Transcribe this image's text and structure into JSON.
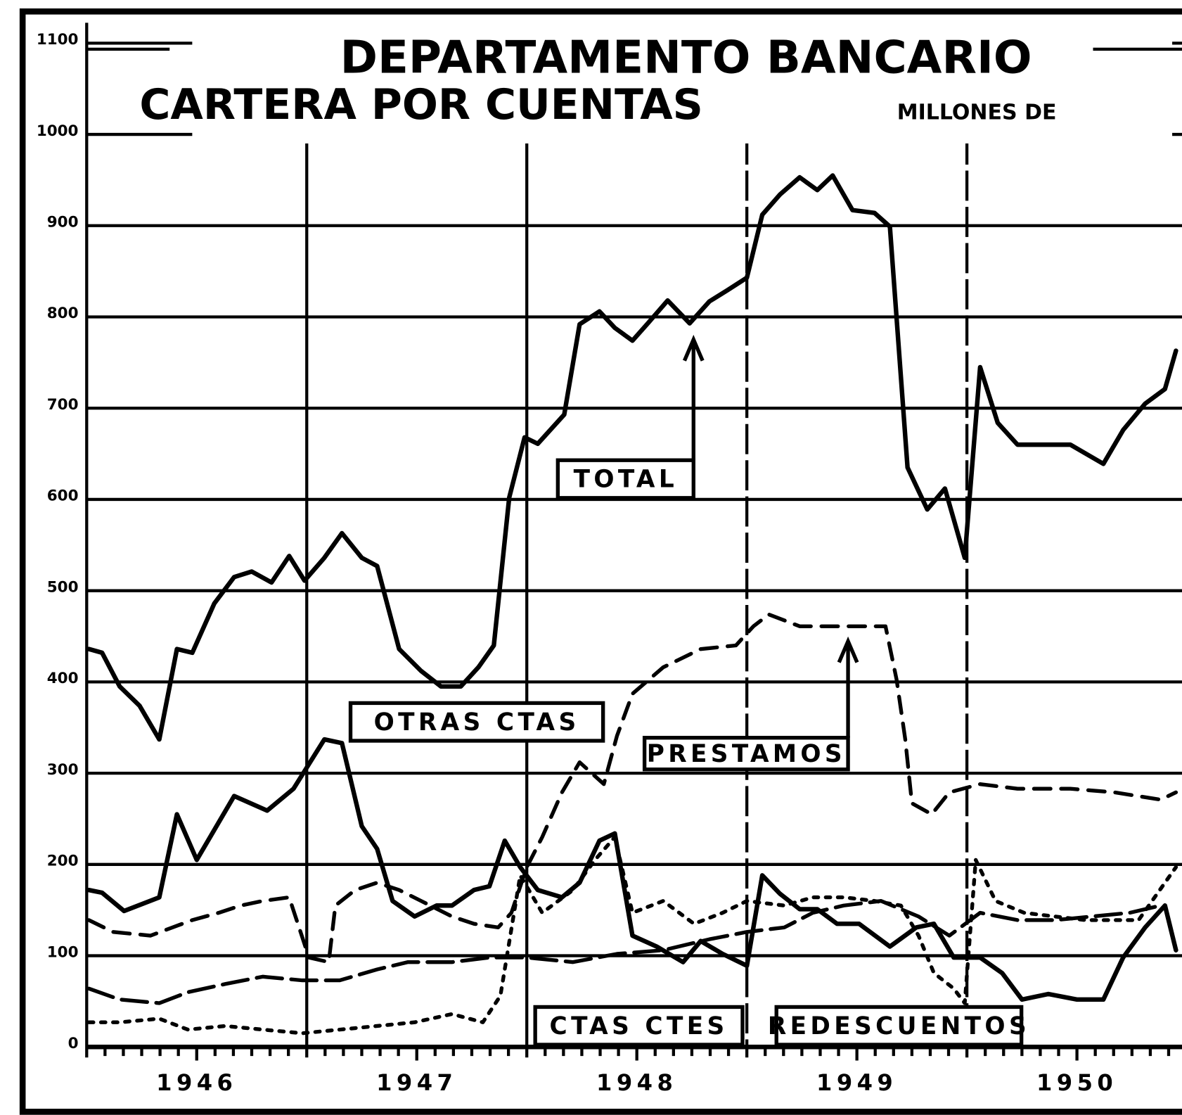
{
  "chart_data": {
    "type": "line",
    "title": "DEPARTAMENTO BANCARIO",
    "subtitle": "CARTERA POR CUENTAS",
    "y_label": "MILLONES DE",
    "ylim": [
      0,
      1100
    ],
    "yticks": [
      0,
      100,
      200,
      300,
      400,
      500,
      600,
      700,
      800,
      900,
      1000,
      1100
    ],
    "xlim": [
      1946,
      1950.95
    ],
    "xticks": [
      1946,
      1947,
      1948,
      1949,
      1950
    ],
    "grid": true,
    "series": [
      {
        "name": "TOTAL",
        "color": "#000000",
        "line_style": "solid",
        "x": [
          1946.01,
          1946.07,
          1946.15,
          1946.24,
          1946.33,
          1946.41,
          1946.48,
          1946.58,
          1946.67,
          1946.75,
          1946.84,
          1946.92,
          1946.99,
          1947.08,
          1947.16,
          1947.25,
          1947.32,
          1947.42,
          1947.52,
          1947.61,
          1947.7,
          1947.78,
          1947.85,
          1947.92,
          1947.99,
          1948.05,
          1948.17,
          1948.24,
          1948.33,
          1948.4,
          1948.48,
          1948.55,
          1948.64,
          1948.74,
          1948.83,
          1948.91,
          1949.0,
          1949.07,
          1949.15,
          1949.24,
          1949.32,
          1949.39,
          1949.48,
          1949.58,
          1949.65,
          1949.73,
          1949.82,
          1949.9,
          1949.99,
          1950.06,
          1950.14,
          1950.23,
          1950.37,
          1950.47,
          1950.62,
          1950.71,
          1950.81,
          1950.9,
          1950.95
        ],
        "values": [
          436,
          432,
          395,
          374,
          337,
          436,
          432,
          486,
          515,
          521,
          509,
          538,
          511,
          536,
          563,
          536,
          527,
          436,
          412,
          395,
          395,
          416,
          440,
          602,
          668,
          661,
          693,
          792,
          806,
          788,
          774,
          793,
          818,
          793,
          817,
          829,
          843,
          912,
          934,
          953,
          939,
          955,
          917,
          914,
          899,
          635,
          589,
          612,
          536,
          745,
          684,
          660,
          660,
          660,
          639,
          676,
          705,
          721,
          763
        ]
      },
      {
        "name": "OTRAS CTAS",
        "color": "#000000",
        "line_style": "solid",
        "x": [
          1946.01,
          1946.07,
          1946.17,
          1946.33,
          1946.41,
          1946.5,
          1946.67,
          1946.82,
          1946.94,
          1947.08,
          1947.16,
          1947.25,
          1947.32,
          1947.39,
          1947.49,
          1947.59,
          1947.66,
          1947.76,
          1947.83,
          1947.9,
          1947.97,
          1948.05,
          1948.16,
          1948.24,
          1948.33,
          1948.4,
          1948.48,
          1948.59,
          1948.71,
          1948.79,
          1948.89,
          1949.0,
          1949.07,
          1949.15,
          1949.24,
          1949.32,
          1949.41,
          1949.51,
          1949.65,
          1949.77,
          1949.85,
          1949.94,
          1950.06,
          1950.16,
          1950.25,
          1950.37,
          1950.5,
          1950.62,
          1950.71,
          1950.81,
          1950.9,
          1950.95
        ],
        "values": [
          172,
          169,
          149,
          164,
          255,
          205,
          275,
          259,
          283,
          337,
          333,
          242,
          217,
          160,
          143,
          155,
          155,
          172,
          176,
          226,
          197,
          172,
          164,
          180,
          226,
          234,
          122,
          110,
          93,
          116,
          102,
          89,
          188,
          168,
          151,
          151,
          135,
          135,
          110,
          131,
          135,
          98,
          98,
          81,
          52,
          58,
          52,
          52,
          98,
          131,
          155,
          106
        ]
      },
      {
        "name": "PRESTAMOS",
        "color": "#000000",
        "line_style": "dashed",
        "x": [
          1946.01,
          1946.12,
          1946.29,
          1946.39,
          1946.48,
          1946.6,
          1946.7,
          1946.8,
          1946.92,
          1947.01,
          1947.1,
          1947.13,
          1947.22,
          1947.32,
          1947.42,
          1947.52,
          1947.66,
          1947.76,
          1947.87,
          1947.93,
          1948.0,
          1948.07,
          1948.16,
          1948.24,
          1948.35,
          1948.41,
          1948.48,
          1948.62,
          1948.79,
          1948.95,
          1949.03,
          1949.1,
          1949.24,
          1949.37,
          1949.51,
          1949.63,
          1949.68,
          1949.72,
          1949.75,
          1949.84,
          1949.92,
          1950.06,
          1950.23,
          1950.47,
          1950.67,
          1950.88,
          1950.95
        ],
        "values": [
          139,
          126,
          122,
          131,
          139,
          147,
          155,
          160,
          164,
          98,
          93,
          155,
          172,
          180,
          172,
          160,
          143,
          135,
          131,
          147,
          197,
          230,
          279,
          312,
          288,
          341,
          387,
          416,
          436,
          440,
          461,
          474,
          461,
          461,
          461,
          461,
          403,
          337,
          267,
          255,
          279,
          288,
          283,
          283,
          279,
          271,
          279
        ]
      },
      {
        "name": "CTAS CTES",
        "color": "#000000",
        "line_style": "longdash",
        "x": [
          1946.01,
          1946.15,
          1946.33,
          1946.46,
          1946.63,
          1946.8,
          1946.98,
          1947.15,
          1947.32,
          1947.46,
          1947.66,
          1947.83,
          1948.0,
          1948.21,
          1948.41,
          1948.62,
          1948.83,
          1949.0,
          1949.17,
          1949.3,
          1949.44,
          1949.61,
          1949.78,
          1949.92,
          1950.06,
          1950.23,
          1950.4,
          1950.57,
          1950.74,
          1950.88
        ],
        "values": [
          64,
          52,
          48,
          60,
          69,
          77,
          73,
          73,
          85,
          93,
          93,
          98,
          98,
          93,
          102,
          106,
          118,
          126,
          131,
          147,
          155,
          160,
          143,
          122,
          147,
          139,
          139,
          143,
          147,
          155
        ]
      },
      {
        "name": "REDESCUENTOS",
        "color": "#000000",
        "line_style": "dotted",
        "x": [
          1946.01,
          1946.15,
          1946.33,
          1946.46,
          1946.63,
          1946.8,
          1946.98,
          1947.15,
          1947.32,
          1947.49,
          1947.66,
          1947.8,
          1947.88,
          1947.97,
          1948.07,
          1948.21,
          1948.31,
          1948.4,
          1948.48,
          1948.62,
          1948.76,
          1948.89,
          1949.0,
          1949.17,
          1949.3,
          1949.44,
          1949.58,
          1949.7,
          1949.78,
          1949.85,
          1949.94,
          1949.99,
          1950.04,
          1950.13,
          1950.26,
          1950.4,
          1950.54,
          1950.67,
          1950.78,
          1950.9,
          1950.95
        ],
        "values": [
          27,
          27,
          31,
          19,
          23,
          19,
          15,
          19,
          23,
          27,
          36,
          27,
          56,
          188,
          147,
          172,
          205,
          230,
          147,
          160,
          135,
          147,
          160,
          155,
          164,
          164,
          160,
          155,
          122,
          81,
          64,
          48,
          205,
          160,
          147,
          143,
          139,
          139,
          139,
          180,
          197
        ]
      }
    ]
  }
}
